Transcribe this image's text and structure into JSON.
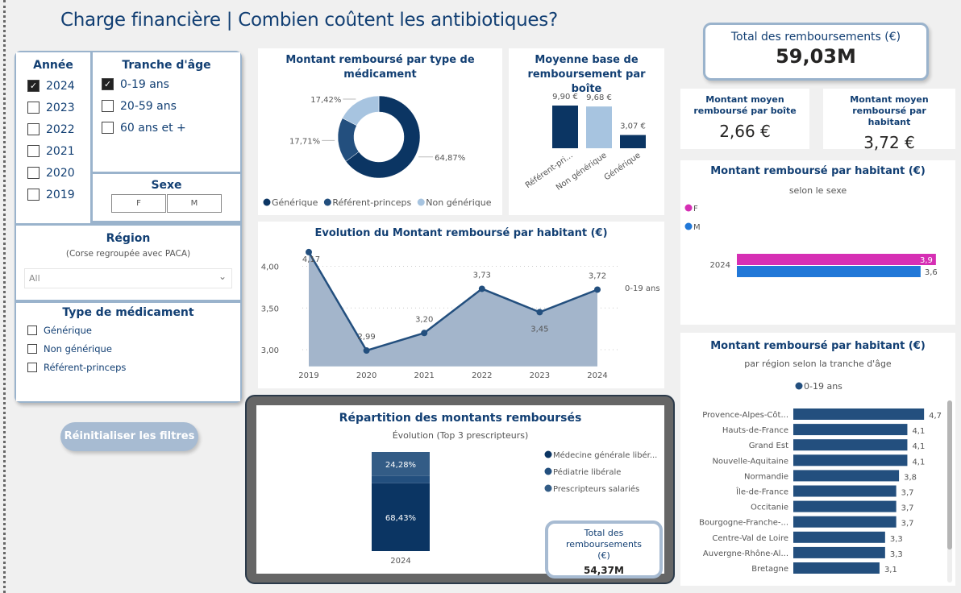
{
  "title": "Charge financière | Combien coûtent les antibiotiques?",
  "colors": {
    "primary": "#0b3563",
    "secondary": "#234f7e",
    "light": "#a7c4e0",
    "female": "#d62fb4",
    "male": "#2178d8",
    "region": "#234f7e",
    "accent_border": "#9ab3cc"
  },
  "filters": {
    "annee": {
      "title": "Année",
      "items": [
        {
          "label": "2024",
          "checked": true
        },
        {
          "label": "2023",
          "checked": false
        },
        {
          "label": "2022",
          "checked": false
        },
        {
          "label": "2021",
          "checked": false
        },
        {
          "label": "2020",
          "checked": false
        },
        {
          "label": "2019",
          "checked": false
        }
      ]
    },
    "tranche": {
      "title": "Tranche d'âge",
      "items": [
        {
          "label": "0-19 ans",
          "checked": true
        },
        {
          "label": "20-59 ans",
          "checked": false
        },
        {
          "label": "60 ans et +",
          "checked": false
        }
      ]
    },
    "sexe": {
      "title": "Sexe",
      "options": [
        "F",
        "M"
      ]
    },
    "region": {
      "title": "Région",
      "subtitle": "(Corse regroupée avec PACA)",
      "value": "All"
    },
    "type": {
      "title": "Type de médicament",
      "items": [
        {
          "label": "Générique",
          "checked": false
        },
        {
          "label": "Non générique",
          "checked": false
        },
        {
          "label": "Référent-princeps",
          "checked": false
        }
      ]
    },
    "reset_label": "Réinitialiser les filtres"
  },
  "kpis": {
    "total": {
      "label": "Total des remboursements (€)",
      "value": "59,03M"
    },
    "moyen_boite": {
      "label": "Montant moyen remboursé par boîte",
      "value": "2,66 €"
    },
    "moyen_habitant": {
      "label": "Montant moyen remboursé par habitant",
      "value": "3,72 €"
    }
  },
  "chart_data": [
    {
      "id": "donut",
      "type": "pie",
      "title": "Montant remboursé par type de médicament",
      "categories": [
        "Générique",
        "Référent-princeps",
        "Non générique"
      ],
      "values": [
        64.87,
        17.71,
        17.42
      ],
      "labels": [
        "64,87%",
        "17,71%",
        "17,42%"
      ],
      "legend": "bottom"
    },
    {
      "id": "moyenne",
      "type": "bar",
      "title": "Moyenne base de remboursement par boîte",
      "categories": [
        "Référent-pri...",
        "Non générique",
        "Générique"
      ],
      "values": [
        9.9,
        9.68,
        3.07
      ],
      "labels": [
        "9,90 €",
        "9,68 €",
        "3,07 €"
      ]
    },
    {
      "id": "evolution",
      "type": "area",
      "title": "Evolution du Montant remboursé par habitant (€)",
      "x": [
        "2019",
        "2020",
        "2021",
        "2022",
        "2023",
        "2024"
      ],
      "values": [
        4.17,
        2.99,
        3.2,
        3.73,
        3.45,
        3.72
      ],
      "labels": [
        "4,17",
        "2,99",
        "3,20",
        "3,73",
        "3,45",
        "3,72"
      ],
      "yticks": [
        "4,00",
        "3,50",
        "3,00"
      ],
      "ytick_values": [
        4.0,
        3.5,
        3.0
      ],
      "ylim": [
        2.8,
        4.3
      ],
      "series_label": "0-19 ans",
      "grid": true
    },
    {
      "id": "repartition",
      "type": "bar",
      "stacked": true,
      "title": "Répartition des montants remboursés",
      "subtitle": "Évolution (Top 3 prescripteurs)",
      "categories": [
        "2024"
      ],
      "series": [
        {
          "name": "Médecine générale libér...",
          "values": [
            68.43
          ],
          "label": "68,43%"
        },
        {
          "name": "Pédiatrie libérale",
          "values": [
            7.29
          ],
          "label": ""
        },
        {
          "name": "Prescripteurs salariés",
          "values": [
            24.28
          ],
          "label": "24,28%"
        }
      ],
      "legend": "right",
      "kpi": {
        "label": "Total des remboursements (€)",
        "value": "54,37M"
      }
    },
    {
      "id": "sexe",
      "type": "bar",
      "orientation": "horizontal",
      "title": "Montant remboursé par habitant (€)",
      "subtitle": "selon le sexe",
      "categories": [
        "2024"
      ],
      "series": [
        {
          "name": "F",
          "values": [
            3.9
          ],
          "label": "3,9"
        },
        {
          "name": "M",
          "values": [
            3.6
          ],
          "label": "3,6"
        }
      ],
      "legend": "top-left"
    },
    {
      "id": "region",
      "type": "bar",
      "orientation": "horizontal",
      "title": "Montant remboursé par habitant (€)",
      "subtitle": "par région selon la tranche d'âge",
      "legend_label": "0-19 ans",
      "categories": [
        "Provence-Alpes-Côt...",
        "Hauts-de-France",
        "Grand Est",
        "Nouvelle-Aquitaine",
        "Normandie",
        "Île-de-France",
        "Occitanie",
        "Bourgogne-Franche-...",
        "Centre-Val de Loire",
        "Auvergne-Rhône-Al...",
        "Bretagne"
      ],
      "values": [
        4.7,
        4.1,
        4.1,
        4.1,
        3.8,
        3.7,
        3.7,
        3.7,
        3.3,
        3.3,
        3.1
      ],
      "labels": [
        "4,7",
        "4,1",
        "4,1",
        "4,1",
        "3,8",
        "3,7",
        "3,7",
        "3,7",
        "3,3",
        "3,3",
        "3,1"
      ]
    }
  ]
}
